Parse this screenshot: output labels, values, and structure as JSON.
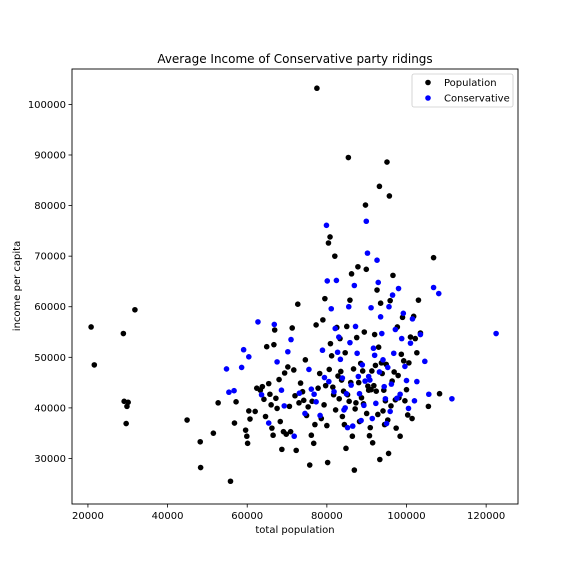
{
  "chart_data": {
    "type": "scatter",
    "title": "Average Income of Conservative party ridings",
    "xlabel": "total population",
    "ylabel": "income per capita",
    "xlim": [
      16000,
      128000
    ],
    "ylim": [
      21000,
      107000
    ],
    "xticks": [
      20000,
      40000,
      60000,
      80000,
      100000,
      120000
    ],
    "yticks": [
      30000,
      40000,
      50000,
      60000,
      70000,
      80000,
      90000,
      100000
    ],
    "legend_position": "top-right",
    "grid": false,
    "series": [
      {
        "name": "Population",
        "color": "#000000",
        "points": [
          [
            20800,
            56000
          ],
          [
            21600,
            48500
          ],
          [
            28900,
            54700
          ],
          [
            29100,
            41300
          ],
          [
            29600,
            36900
          ],
          [
            29800,
            40300
          ],
          [
            30100,
            41100
          ],
          [
            31800,
            59400
          ],
          [
            44900,
            37600
          ],
          [
            48200,
            33300
          ],
          [
            48300,
            28200
          ],
          [
            51500,
            35000
          ],
          [
            52700,
            41000
          ],
          [
            55800,
            25500
          ],
          [
            56800,
            37000
          ],
          [
            57200,
            41200
          ],
          [
            59600,
            35600
          ],
          [
            59900,
            34400
          ],
          [
            60100,
            33000
          ],
          [
            60400,
            39400
          ],
          [
            60700,
            37800
          ],
          [
            62000,
            39300
          ],
          [
            62400,
            43900
          ],
          [
            63300,
            43500
          ],
          [
            63800,
            44200
          ],
          [
            64200,
            41700
          ],
          [
            64600,
            38300
          ],
          [
            64900,
            52100
          ],
          [
            65400,
            44800
          ],
          [
            65700,
            42700
          ],
          [
            66000,
            40600
          ],
          [
            66200,
            36000
          ],
          [
            66500,
            34600
          ],
          [
            66700,
            52500
          ],
          [
            66900,
            55400
          ],
          [
            67200,
            41900
          ],
          [
            67500,
            39900
          ],
          [
            68000,
            45600
          ],
          [
            68300,
            37300
          ],
          [
            68700,
            31800
          ],
          [
            69100,
            35300
          ],
          [
            69400,
            46900
          ],
          [
            69800,
            34800
          ],
          [
            70200,
            48100
          ],
          [
            70600,
            40300
          ],
          [
            70900,
            35300
          ],
          [
            71300,
            55800
          ],
          [
            71700,
            47500
          ],
          [
            72000,
            42400
          ],
          [
            72300,
            31600
          ],
          [
            72700,
            60500
          ],
          [
            73000,
            41000
          ],
          [
            73400,
            44900
          ],
          [
            73900,
            43200
          ],
          [
            74200,
            41500
          ],
          [
            74600,
            49500
          ],
          [
            74900,
            38500
          ],
          [
            75300,
            40200
          ],
          [
            75700,
            28700
          ],
          [
            76100,
            34600
          ],
          [
            76300,
            41300
          ],
          [
            76700,
            33000
          ],
          [
            77000,
            36700
          ],
          [
            77300,
            56400
          ],
          [
            77500,
            103200
          ],
          [
            77800,
            43900
          ],
          [
            78200,
            46800
          ],
          [
            78600,
            37900
          ],
          [
            79000,
            57400
          ],
          [
            79300,
            40600
          ],
          [
            79500,
            61600
          ],
          [
            79700,
            44400
          ],
          [
            80000,
            36500
          ],
          [
            80200,
            29200
          ],
          [
            80400,
            72600
          ],
          [
            80600,
            47600
          ],
          [
            80800,
            73800
          ],
          [
            80900,
            52700
          ],
          [
            81200,
            50300
          ],
          [
            81500,
            44100
          ],
          [
            81700,
            42600
          ],
          [
            82000,
            70000
          ],
          [
            82200,
            39600
          ],
          [
            82500,
            55900
          ],
          [
            82800,
            46300
          ],
          [
            83100,
            41800
          ],
          [
            83300,
            53700
          ],
          [
            83500,
            47200
          ],
          [
            83700,
            45500
          ],
          [
            83900,
            38300
          ],
          [
            84200,
            43300
          ],
          [
            84400,
            36700
          ],
          [
            84600,
            50900
          ],
          [
            84800,
            32000
          ],
          [
            85000,
            56100
          ],
          [
            85200,
            42600
          ],
          [
            85400,
            89500
          ],
          [
            85600,
            41300
          ],
          [
            85800,
            61300
          ],
          [
            86000,
            45000
          ],
          [
            86200,
            66500
          ],
          [
            86400,
            34400
          ],
          [
            86700,
            47700
          ],
          [
            86900,
            27700
          ],
          [
            87100,
            39800
          ],
          [
            87300,
            41000
          ],
          [
            87500,
            53900
          ],
          [
            87800,
            67900
          ],
          [
            88000,
            45000
          ],
          [
            88200,
            37300
          ],
          [
            88500,
            48800
          ],
          [
            88700,
            42000
          ],
          [
            89000,
            47300
          ],
          [
            89200,
            40800
          ],
          [
            89400,
            55000
          ],
          [
            89700,
            80100
          ],
          [
            89900,
            67400
          ],
          [
            90000,
            38900
          ],
          [
            90300,
            44300
          ],
          [
            90500,
            43500
          ],
          [
            90700,
            34500
          ],
          [
            90900,
            36100
          ],
          [
            91100,
            43600
          ],
          [
            91300,
            47300
          ],
          [
            91500,
            33100
          ],
          [
            91800,
            44400
          ],
          [
            92000,
            54500
          ],
          [
            92200,
            48400
          ],
          [
            92400,
            43300
          ],
          [
            92600,
            63300
          ],
          [
            92800,
            38700
          ],
          [
            93000,
            52000
          ],
          [
            93200,
            83800
          ],
          [
            93300,
            29800
          ],
          [
            93500,
            60700
          ],
          [
            93700,
            48900
          ],
          [
            93900,
            46800
          ],
          [
            94100,
            39400
          ],
          [
            94300,
            43500
          ],
          [
            94500,
            36700
          ],
          [
            94700,
            41400
          ],
          [
            94900,
            48600
          ],
          [
            95100,
            88600
          ],
          [
            95300,
            37600
          ],
          [
            95500,
            31000
          ],
          [
            95700,
            81900
          ],
          [
            95900,
            61200
          ],
          [
            96100,
            40400
          ],
          [
            96400,
            45300
          ],
          [
            96600,
            66200
          ],
          [
            96900,
            47100
          ],
          [
            97200,
            41600
          ],
          [
            97400,
            36000
          ],
          [
            97700,
            56000
          ],
          [
            97900,
            46400
          ],
          [
            98100,
            42000
          ],
          [
            98400,
            34400
          ],
          [
            98700,
            50600
          ],
          [
            99000,
            57900
          ],
          [
            99300,
            49300
          ],
          [
            99600,
            41400
          ],
          [
            100000,
            43600
          ],
          [
            100300,
            38600
          ],
          [
            100600,
            48900
          ],
          [
            101000,
            54000
          ],
          [
            101400,
            37900
          ],
          [
            101800,
            58100
          ],
          [
            102200,
            53700
          ],
          [
            102600,
            50900
          ],
          [
            103000,
            61300
          ],
          [
            103500,
            54800
          ],
          [
            105500,
            40300
          ],
          [
            106800,
            69700
          ],
          [
            108300,
            42800
          ]
        ]
      },
      {
        "name": "Conservative",
        "color": "#0000ff",
        "points": [
          [
            54800,
            47700
          ],
          [
            55400,
            43100
          ],
          [
            56700,
            43400
          ],
          [
            58600,
            48000
          ],
          [
            59100,
            51500
          ],
          [
            60400,
            50100
          ],
          [
            62700,
            57000
          ],
          [
            63600,
            42600
          ],
          [
            65400,
            37000
          ],
          [
            66800,
            56500
          ],
          [
            67500,
            49100
          ],
          [
            68600,
            43500
          ],
          [
            69300,
            40400
          ],
          [
            70200,
            51100
          ],
          [
            71000,
            53500
          ],
          [
            71800,
            34400
          ],
          [
            73100,
            42900
          ],
          [
            74500,
            38900
          ],
          [
            75500,
            47600
          ],
          [
            76100,
            43700
          ],
          [
            76800,
            42700
          ],
          [
            77300,
            41200
          ],
          [
            78300,
            38500
          ],
          [
            78900,
            51400
          ],
          [
            79400,
            46000
          ],
          [
            79900,
            76100
          ],
          [
            80100,
            65100
          ],
          [
            80500,
            45200
          ],
          [
            81100,
            59600
          ],
          [
            81800,
            43200
          ],
          [
            82100,
            55700
          ],
          [
            82400,
            65200
          ],
          [
            82700,
            51000
          ],
          [
            83000,
            54000
          ],
          [
            83400,
            49600
          ],
          [
            83900,
            45900
          ],
          [
            84300,
            39600
          ],
          [
            84600,
            40000
          ],
          [
            84900,
            42800
          ],
          [
            85200,
            36100
          ],
          [
            85500,
            60000
          ],
          [
            85800,
            52900
          ],
          [
            86100,
            44500
          ],
          [
            86500,
            36400
          ],
          [
            86900,
            64200
          ],
          [
            87200,
            56100
          ],
          [
            87600,
            50800
          ],
          [
            87900,
            46200
          ],
          [
            88200,
            42800
          ],
          [
            88600,
            37500
          ],
          [
            88900,
            48500
          ],
          [
            89300,
            40500
          ],
          [
            89600,
            45300
          ],
          [
            89900,
            76900
          ],
          [
            90200,
            70600
          ],
          [
            90500,
            46200
          ],
          [
            90800,
            45500
          ],
          [
            91100,
            59800
          ],
          [
            91400,
            37900
          ],
          [
            91700,
            51800
          ],
          [
            92000,
            50400
          ],
          [
            92300,
            40900
          ],
          [
            92600,
            69200
          ],
          [
            92900,
            64800
          ],
          [
            93200,
            47100
          ],
          [
            93500,
            58000
          ],
          [
            93800,
            54700
          ],
          [
            94100,
            49500
          ],
          [
            94400,
            44200
          ],
          [
            94700,
            41800
          ],
          [
            95000,
            36900
          ],
          [
            95300,
            48000
          ],
          [
            95600,
            60000
          ],
          [
            95900,
            39300
          ],
          [
            96200,
            44700
          ],
          [
            96500,
            62300
          ],
          [
            96800,
            50800
          ],
          [
            97200,
            55500
          ],
          [
            97600,
            41900
          ],
          [
            98000,
            63600
          ],
          [
            98400,
            42700
          ],
          [
            98800,
            53700
          ],
          [
            99200,
            58700
          ],
          [
            99600,
            48200
          ],
          [
            100000,
            45400
          ],
          [
            100500,
            39900
          ],
          [
            101000,
            52800
          ],
          [
            101500,
            57600
          ],
          [
            102000,
            41400
          ],
          [
            102600,
            45200
          ],
          [
            103500,
            54500
          ],
          [
            104600,
            49200
          ],
          [
            105600,
            42700
          ],
          [
            106800,
            63800
          ],
          [
            108100,
            62600
          ],
          [
            111400,
            41800
          ],
          [
            122500,
            54700
          ]
        ]
      }
    ]
  }
}
